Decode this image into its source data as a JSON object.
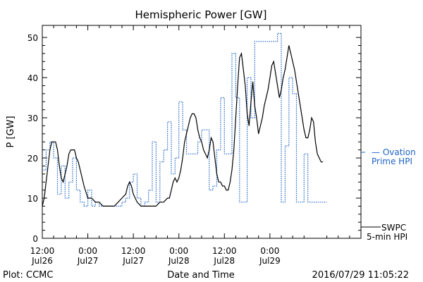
{
  "chart_data": {
    "type": "line",
    "title": "Hemispheric Power [GW]",
    "ylabel": "P [GW]",
    "xlabel": "Date and Time",
    "ylim": [
      0,
      53
    ],
    "xlim": [
      0,
      84
    ],
    "x_unit": "hours since 2016-07-26 12:00",
    "yticks": [
      0,
      10,
      20,
      30,
      40,
      50
    ],
    "x_ticks": [
      {
        "x": 0,
        "line1": "12:00",
        "line2": "Jul26"
      },
      {
        "x": 12,
        "line1": "0:00",
        "line2": "Jul27"
      },
      {
        "x": 24,
        "line1": "12:00",
        "line2": "Jul27"
      },
      {
        "x": 36,
        "line1": "0:00",
        "line2": "Jul28"
      },
      {
        "x": 48,
        "line1": "12:00",
        "line2": "Jul28"
      },
      {
        "x": 60,
        "line1": "0:00",
        "line2": "Jul29"
      }
    ],
    "grid": false,
    "series": [
      {
        "name": "Ovation Prime HPI",
        "style": "dotted-step",
        "color": "#1e64c8",
        "x": [
          0,
          1,
          2,
          3,
          4,
          5,
          6,
          7,
          8,
          9,
          10,
          11,
          12,
          13,
          14,
          15,
          16,
          17,
          18,
          19,
          20,
          21,
          22,
          23,
          24,
          25,
          26,
          27,
          28,
          29,
          30,
          31,
          32,
          33,
          34,
          35,
          36,
          37,
          38,
          39,
          40,
          41,
          42,
          43,
          44,
          45,
          46,
          47,
          48,
          49,
          50,
          51,
          52,
          53,
          54,
          55,
          56,
          57,
          58,
          59,
          60,
          61,
          62,
          63,
          64,
          65,
          66,
          67,
          68,
          69,
          70,
          71,
          72,
          73,
          74
        ],
        "y": [
          17,
          22,
          24,
          20,
          11,
          18,
          10,
          14,
          20,
          12,
          9,
          8,
          12,
          8,
          9,
          8,
          8,
          8,
          8,
          8,
          8,
          9,
          10,
          14,
          16,
          10,
          8,
          9,
          12,
          24,
          9,
          19,
          22,
          29,
          16,
          20,
          34,
          27,
          21,
          21,
          21,
          24,
          27,
          27,
          12,
          13,
          22,
          35,
          21,
          21,
          46,
          35,
          9,
          9,
          40,
          30,
          49,
          49,
          49,
          49,
          49,
          49,
          51,
          9,
          23,
          40,
          36,
          9,
          9,
          21,
          9,
          9,
          9,
          9,
          9
        ]
      },
      {
        "name": "SWPC 5-min HPI",
        "style": "solid",
        "color": "#000000",
        "x": [
          0,
          0.5,
          1,
          1.5,
          2,
          2.5,
          3,
          3.5,
          4,
          4.5,
          5,
          5.5,
          6,
          6.5,
          7,
          7.5,
          8,
          8.5,
          9,
          9.5,
          10,
          11,
          12,
          13,
          14,
          15,
          16,
          17,
          18,
          19,
          20,
          21,
          22,
          22.5,
          23,
          23.5,
          24,
          24.5,
          25,
          26,
          27,
          28,
          29,
          30,
          31,
          32,
          33,
          33.5,
          34,
          34.5,
          35,
          35.5,
          36,
          36.5,
          37,
          37.5,
          38,
          38.5,
          39,
          39.5,
          40,
          40.5,
          41,
          41.5,
          42,
          42.5,
          43,
          43.5,
          44,
          44.5,
          45,
          45.5,
          46,
          46.5,
          47,
          47.5,
          48,
          48.5,
          49,
          49.5,
          50,
          50.5,
          51,
          51.5,
          52,
          52.5,
          53,
          53.5,
          54,
          54.5,
          55,
          55.5,
          56,
          56.5,
          57,
          57.5,
          58,
          58.5,
          59,
          59.5,
          60,
          60.5,
          61,
          61.5,
          62,
          62.5,
          63,
          63.5,
          64,
          64.5,
          65,
          65.5,
          66,
          66.5,
          67,
          67.5,
          68,
          68.5,
          69,
          69.5,
          70,
          70.5,
          71,
          71.5,
          72,
          72.5,
          73,
          73.5,
          74
        ],
        "y": [
          8,
          10,
          14,
          18,
          22,
          24,
          24,
          24,
          22,
          18,
          15,
          14,
          16,
          18,
          21,
          22,
          22,
          22,
          20,
          19,
          17,
          13,
          10,
          10,
          9,
          9,
          8,
          8,
          8,
          8,
          9,
          10,
          11,
          13,
          14,
          13,
          11,
          10,
          9,
          8,
          8,
          8,
          8,
          8,
          9,
          9,
          10,
          10,
          12,
          14,
          15,
          14,
          15,
          17,
          20,
          24,
          26,
          28,
          30,
          31,
          31,
          30,
          27,
          25,
          24,
          22,
          21,
          20,
          22,
          25,
          24,
          20,
          16,
          14,
          14,
          13,
          13,
          12,
          12,
          14,
          17,
          22,
          30,
          38,
          45,
          46,
          42,
          38,
          31,
          28,
          34,
          39,
          33,
          30,
          26,
          28,
          30,
          33,
          35,
          37,
          40,
          43,
          44,
          41,
          38,
          35,
          37,
          40,
          42,
          45,
          48,
          46,
          44,
          42,
          39,
          36,
          33,
          30,
          27,
          25,
          25,
          27,
          30,
          29,
          24,
          21,
          20,
          19,
          19
        ]
      }
    ],
    "legend": {
      "position": "right",
      "ovation_line1": "— Ovation",
      "ovation_line2": "Prime HPI",
      "swpc_line1": "SWPC",
      "swpc_line2": "5-min HPI"
    },
    "footer": {
      "left": "Plot: CCMC",
      "right": "2016/07/29 11:05:22"
    }
  }
}
